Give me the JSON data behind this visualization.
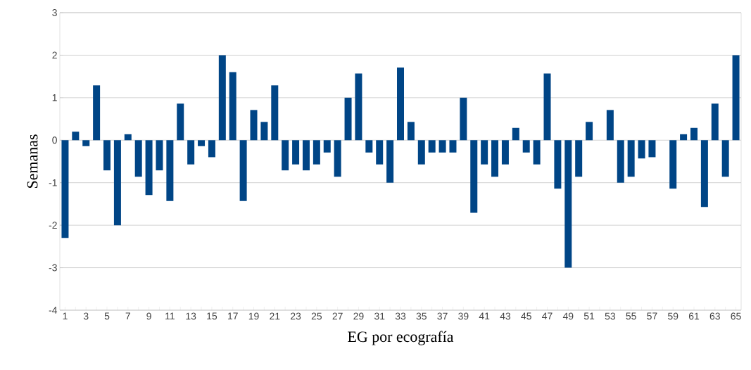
{
  "chart_data": {
    "type": "bar",
    "xlabel": "EG por ecografía",
    "ylabel": "Semanas",
    "categories": [
      "1",
      null,
      "3",
      null,
      "5",
      null,
      "7",
      null,
      "9",
      null,
      "11",
      null,
      "13",
      null,
      "15",
      null,
      "17",
      null,
      "19",
      null,
      "21",
      null,
      "23",
      null,
      "25",
      null,
      "27",
      null,
      "29",
      null,
      "31",
      null,
      "33",
      null,
      "35",
      null,
      "37",
      null,
      "39",
      null,
      "41",
      null,
      "43",
      null,
      "45",
      null,
      "47",
      null,
      "49",
      null,
      "51",
      null,
      "53",
      null,
      "55",
      null,
      "57",
      null,
      "59",
      null,
      "61",
      null,
      "63",
      null,
      "65"
    ],
    "values": [
      -2.3,
      0.2,
      -0.14,
      1.29,
      -0.71,
      -2.0,
      0.14,
      -0.86,
      -1.29,
      -0.71,
      -1.43,
      0.86,
      -0.57,
      -0.14,
      -0.4,
      2.0,
      1.6,
      -1.43,
      0.71,
      0.43,
      1.29,
      -0.71,
      -0.57,
      -0.71,
      -0.57,
      -0.29,
      -0.86,
      1.0,
      1.57,
      -0.29,
      -0.57,
      -1.0,
      1.71,
      0.43,
      -0.57,
      -0.29,
      -0.29,
      -0.29,
      1.0,
      -1.71,
      -0.57,
      -0.86,
      -0.57,
      0.29,
      -0.29,
      -0.57,
      1.57,
      -1.14,
      -3.0,
      -0.86,
      0.43,
      0,
      0.71,
      -1.0,
      -0.86,
      -0.43,
      -0.4,
      0,
      -1.14,
      0.14,
      0.29,
      -1.57,
      0.86,
      -0.86,
      2.0
    ],
    "color": "#004586",
    "ylim": [
      -4,
      3
    ],
    "yticks": [
      -4,
      -3,
      -2,
      -1,
      0,
      1,
      2,
      3
    ],
    "grid": "y"
  }
}
